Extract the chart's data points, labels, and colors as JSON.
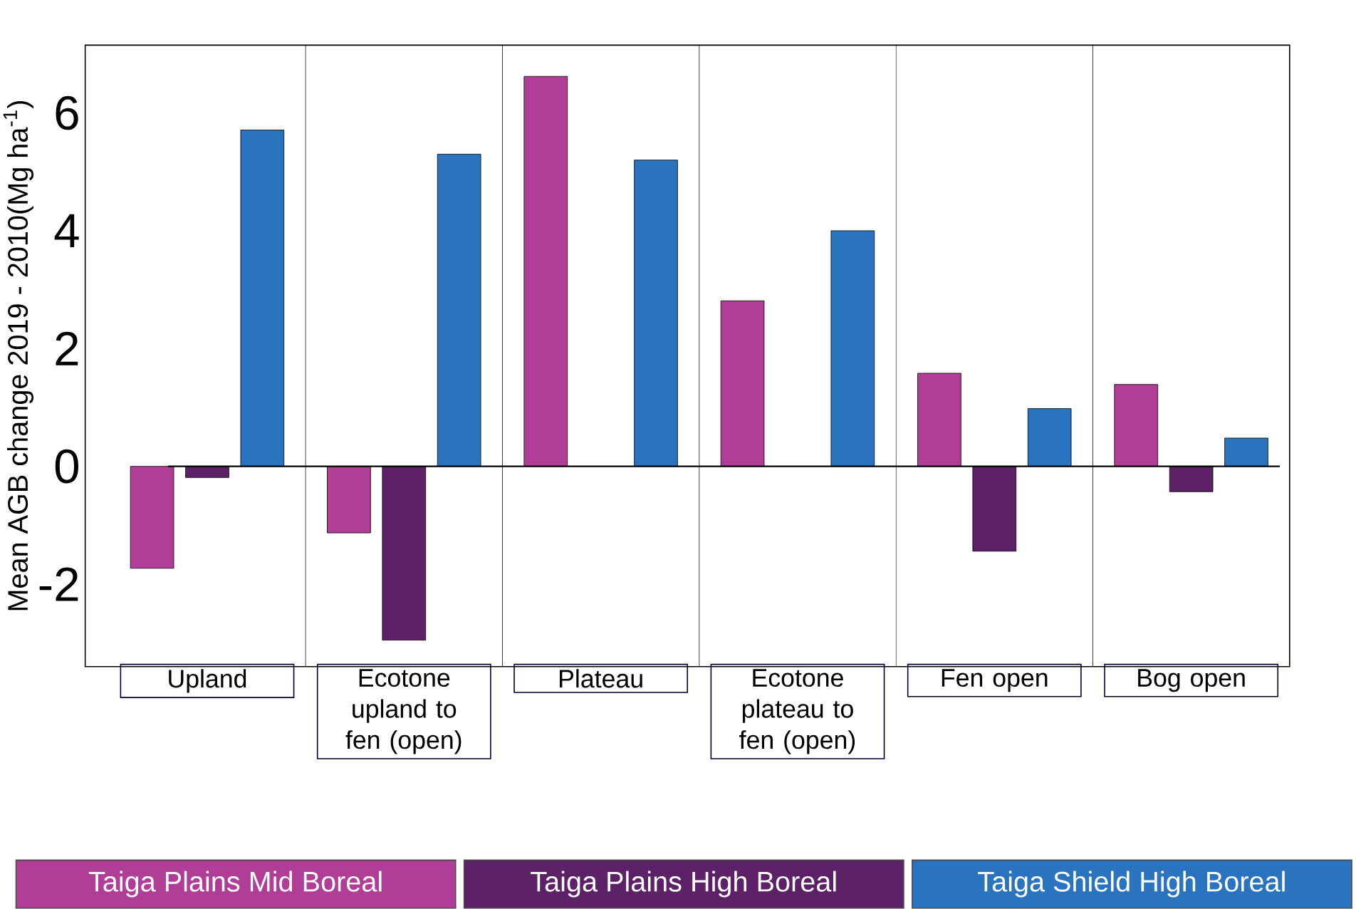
{
  "chart_data": {
    "type": "bar",
    "ylabel": "Mean AGB change 2019 - 2010(Mg ha$^{-1}$)",
    "categories": [
      "Upland",
      "Ecotone upland to fen (open)",
      "Plateau",
      "Ecotone plateau to fen (open)",
      "Fen open",
      "Bog open"
    ],
    "series": [
      {
        "name": "Taiga Plains Mid Boreal",
        "color": "#b03e96",
        "values": [
          -1.73,
          -1.13,
          6.62,
          2.81,
          1.58,
          1.39
        ]
      },
      {
        "name": "Taiga Plains High Boreal",
        "color": "#5c2166",
        "values": [
          -0.19,
          -2.95,
          null,
          null,
          -1.44,
          -0.43
        ]
      },
      {
        "name": "Taiga Shield High Boreal",
        "color": "#2a74bf",
        "values": [
          5.71,
          5.3,
          5.2,
          4.0,
          0.98,
          0.48
        ]
      }
    ],
    "ylim": [
      -3.4,
      7.15
    ],
    "yticks": [
      -2,
      0,
      2,
      4,
      6
    ],
    "legend": "bottom",
    "grid": false
  }
}
